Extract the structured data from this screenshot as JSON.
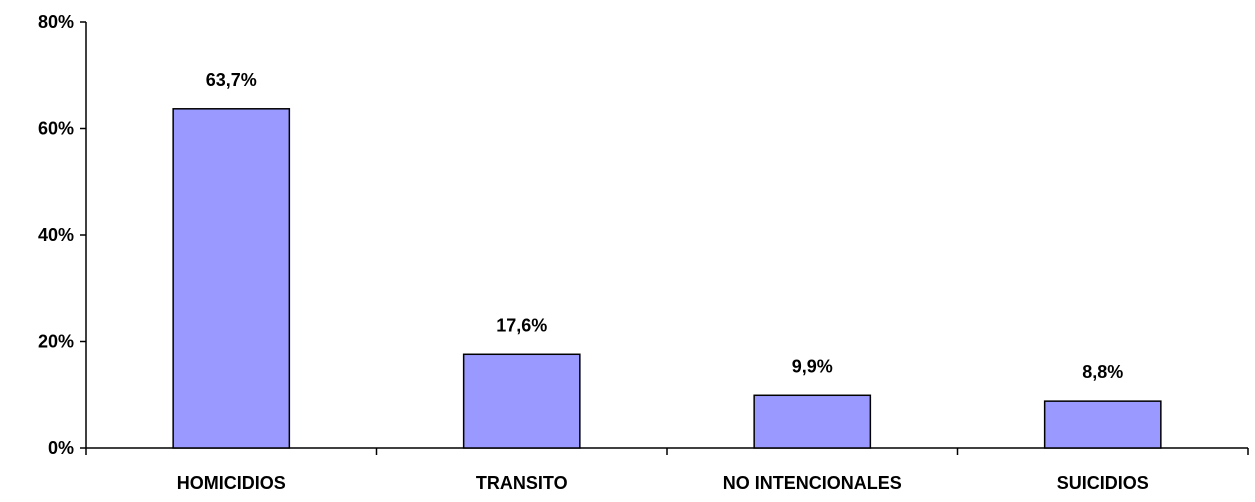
{
  "chart_data": {
    "type": "bar",
    "title": "",
    "xlabel": "",
    "ylabel": "",
    "categories": [
      "HOMICIDIOS",
      "TRANSITO",
      "NO INTENCIONALES",
      "SUICIDIOS"
    ],
    "values": [
      63.7,
      17.6,
      9.9,
      8.8
    ],
    "data_labels": [
      "63,7%",
      "17,6%",
      "9,9%",
      "8,8%"
    ],
    "ylim": [
      0,
      80
    ],
    "yticks": [
      0,
      20,
      40,
      60,
      80
    ],
    "ytick_labels": [
      "0%",
      "20%",
      "40%",
      "60%",
      "80%"
    ],
    "grid": false,
    "legend": "none",
    "bar_color": "#9999ff",
    "bar_border_color": "#000000"
  }
}
